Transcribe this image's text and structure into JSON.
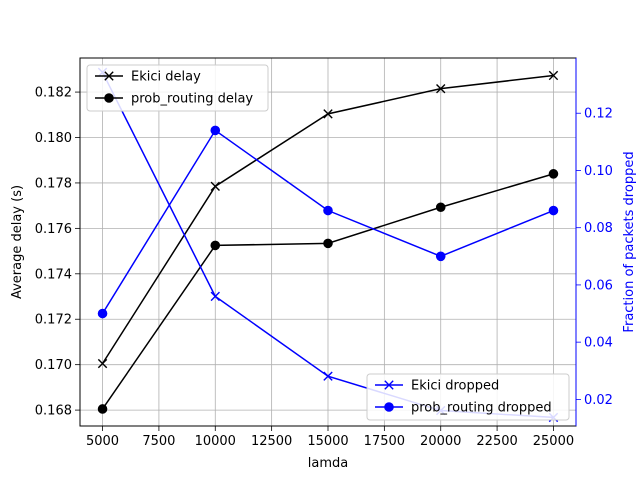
{
  "chart_data": {
    "type": "line",
    "title": "",
    "xlabel": "lamda",
    "ylabel": "Average delay (s)",
    "ylabel_right": "Fraction of packets dropped",
    "x": [
      5000,
      10000,
      15000,
      20000,
      25000
    ],
    "xlim": [
      4000,
      26000
    ],
    "ylim": [
      0.1673,
      0.1835
    ],
    "ylim_right": [
      0.0107,
      0.1393
    ],
    "x_ticks": [
      5000,
      7500,
      10000,
      12500,
      15000,
      17500,
      20000,
      22500,
      25000
    ],
    "y_ticks": [
      0.168,
      0.17,
      0.172,
      0.174,
      0.176,
      0.178,
      0.18,
      0.182
    ],
    "y_ticks_right": [
      0.02,
      0.04,
      0.06,
      0.08,
      0.1,
      0.12
    ],
    "x_tick_labels": [
      "5000",
      "7500",
      "10000",
      "12500",
      "15000",
      "17500",
      "20000",
      "22500",
      "25000"
    ],
    "y_tick_labels": [
      "0.168",
      "0.170",
      "0.172",
      "0.174",
      "0.176",
      "0.178",
      "0.180",
      "0.182"
    ],
    "y_tick_labels_right": [
      "0.02",
      "0.04",
      "0.06",
      "0.08",
      "0.10",
      "0.12"
    ],
    "grid": true,
    "series": [
      {
        "name": "Ekici delay",
        "axis": "left",
        "color": "#000000",
        "marker": "x",
        "values": [
          0.17005,
          0.17785,
          0.18104,
          0.18215,
          0.18273
        ]
      },
      {
        "name": "prob_routing delay",
        "axis": "left",
        "color": "#000000",
        "marker": "circle",
        "values": [
          0.16805,
          0.17525,
          0.17534,
          0.17693,
          0.1784
        ]
      },
      {
        "name": "Ekici dropped",
        "axis": "right",
        "color": "#0000ff",
        "marker": "x",
        "values": [
          0.1343,
          0.056,
          0.0281,
          0.0161,
          0.0137
        ]
      },
      {
        "name": "prob_routing dropped",
        "axis": "right",
        "color": "#0000ff",
        "marker": "circle",
        "values": [
          0.05,
          0.114,
          0.086,
          0.07,
          0.086
        ]
      }
    ],
    "legends": [
      {
        "placement": "upper-left",
        "entries": [
          "Ekici delay",
          "prob_routing delay"
        ]
      },
      {
        "placement": "lower-right",
        "entries": [
          "Ekici dropped",
          "prob_routing dropped"
        ]
      }
    ]
  }
}
